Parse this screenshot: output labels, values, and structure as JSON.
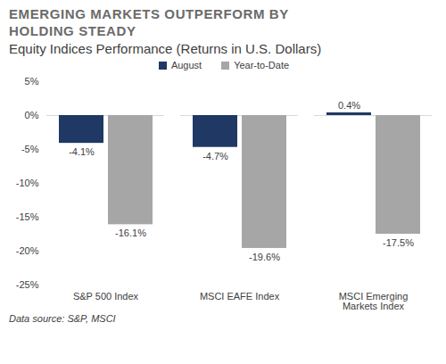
{
  "chart_data": {
    "type": "bar",
    "title": "EMERGING MARKETS OUTPERFORM BY HOLDING STEADY",
    "subtitle": "Equity Indices Performance (Returns in U.S. Dollars)",
    "caption": "Data source: S&P, MSCI",
    "categories": [
      "S&P 500 Index",
      "MSCI EAFE Index",
      "MSCI Emerging Markets Index"
    ],
    "series": [
      {
        "name": "August",
        "color": "#1f3864",
        "values": [
          -4.1,
          -4.7,
          0.4
        ],
        "value_labels": [
          "-4.1%",
          "-4.7%",
          "0.4%"
        ]
      },
      {
        "name": "Year-to-Date",
        "color": "#a6a6a6",
        "values": [
          -16.1,
          -19.6,
          -17.5
        ],
        "value_labels": [
          "-16.1%",
          "-19.6%",
          "-17.5%"
        ]
      }
    ],
    "ylim": [
      -25,
      5
    ],
    "yticks": [
      {
        "value": 5,
        "label": "5%"
      },
      {
        "value": 0,
        "label": "0%"
      },
      {
        "value": -5,
        "label": "-5%"
      },
      {
        "value": -10,
        "label": "-10%"
      },
      {
        "value": -15,
        "label": "-15%"
      },
      {
        "value": -20,
        "label": "-20%"
      },
      {
        "value": -25,
        "label": "-25%"
      }
    ],
    "grid": false,
    "legend": "top",
    "data_labels": true
  }
}
